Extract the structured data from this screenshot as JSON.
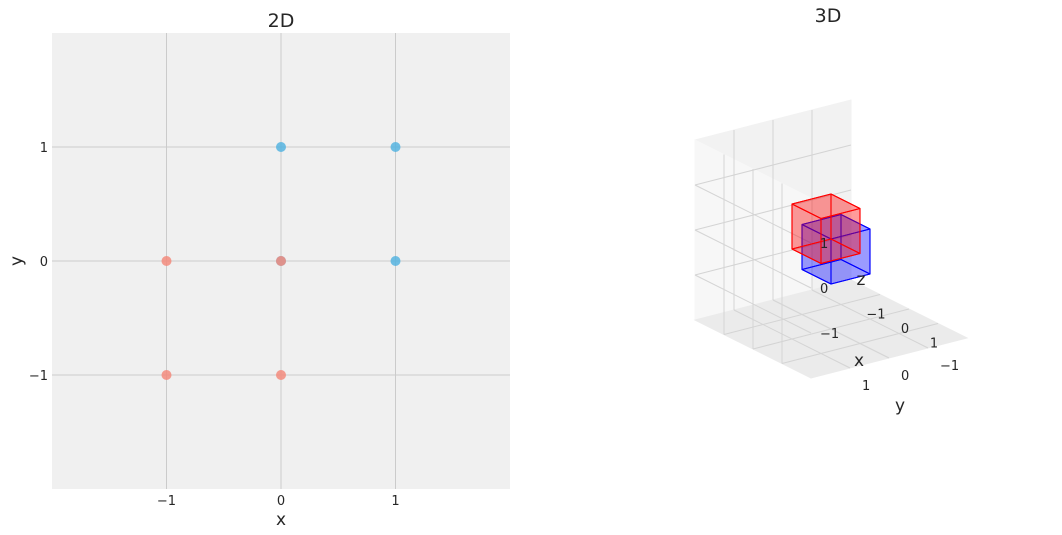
{
  "chart_data": [
    {
      "type": "scatter",
      "title": "2D",
      "xlabel": "x",
      "ylabel": "y",
      "xlim": [
        -2,
        2
      ],
      "ylim": [
        -2,
        2
      ],
      "xticks": [
        -1,
        0,
        1
      ],
      "yticks": [
        -1,
        0,
        1
      ],
      "xtick_labels": [
        "−1",
        "0",
        "1"
      ],
      "ytick_labels": [
        "−1",
        "0",
        "1"
      ],
      "grid": true,
      "background": "#f0f0f0",
      "series": [
        {
          "color": "#56b4e0",
          "points": [
            {
              "x": 0,
              "y": 0
            },
            {
              "x": 0,
              "y": 1
            },
            {
              "x": 1,
              "y": 1
            },
            {
              "x": 1,
              "y": 0
            }
          ]
        },
        {
          "color": "#f38b7d",
          "points": [
            {
              "x": 0,
              "y": 0
            },
            {
              "x": -1,
              "y": 0
            },
            {
              "x": -1,
              "y": -1
            },
            {
              "x": 0,
              "y": -1
            }
          ]
        }
      ]
    },
    {
      "type": "scatter3d",
      "title": "3D",
      "xlabel": "x",
      "ylabel": "y",
      "zlabel": "z",
      "xlim": [
        -2,
        2
      ],
      "ylim": [
        -2,
        2
      ],
      "zlim": [
        -2,
        2
      ],
      "xticks": [
        -1,
        0,
        1
      ],
      "yticks": [
        -1,
        0,
        1
      ],
      "zticks": [
        -1,
        0,
        1
      ],
      "tick_labels": [
        "−1",
        "0",
        "1"
      ],
      "grid": true,
      "cubes": [
        {
          "color": "#0000ff",
          "fill": "rgba(0,0,255,0.22)",
          "origin": [
            -1,
            -1,
            -1
          ],
          "size": 1
        },
        {
          "color": "#ff0000",
          "fill": "rgba(255,0,0,0.22)",
          "origin": [
            0,
            0,
            0
          ],
          "size": 1
        }
      ]
    }
  ]
}
